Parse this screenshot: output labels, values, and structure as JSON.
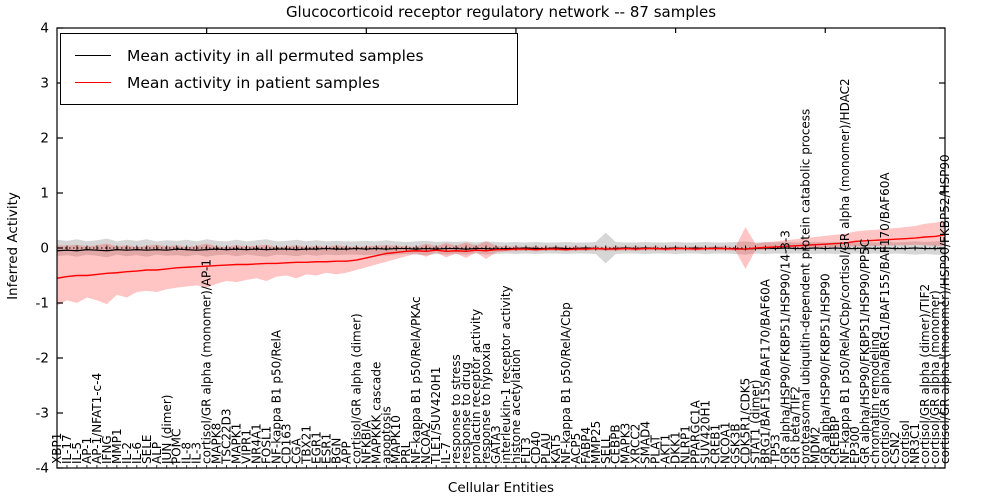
{
  "chart_data": {
    "type": "line",
    "title": "Glucocorticoid receptor regulatory network -- 87 samples",
    "xlabel": "Cellular Entities",
    "ylabel": "Inferred Activity",
    "ylim": [
      -4,
      4
    ],
    "yticks": [
      4,
      3,
      2,
      1,
      0,
      -1,
      -2,
      -3,
      -4
    ],
    "grid": false,
    "legend_position": "upper left",
    "legend": [
      {
        "label": "Mean activity in all permuted samples",
        "color": "#000000"
      },
      {
        "label": "Mean activity in patient samples",
        "color": "#ff0000"
      }
    ],
    "colors": {
      "permuted_line": "#000000",
      "patient_line": "#ff0000",
      "patient_band": "rgba(255,60,60,0.30)",
      "permuted_band": "rgba(120,120,120,0.30)",
      "zero_line": "#000000"
    },
    "categories": [
      "XBP1",
      "IL-17",
      "IL-5",
      "AP-1",
      "AP-1/NFAT1-c-4",
      "IFNG",
      "MMP1",
      "IL-2",
      "IL-6",
      "SELE",
      "ALP",
      "JUN (dimer)",
      "POMC",
      "IL-8",
      "IL-3",
      "cortisol/GR alpha (monomer)/AP-1",
      "MAPK8",
      "TSC22D3",
      "MAPK1",
      "VIPR1",
      "NR4A1",
      "FOSL1",
      "NF-kappa B1 p50/RelA",
      "CD163",
      "CGA",
      "TBX21",
      "EGR1",
      "ESR1",
      "BGN",
      "APP",
      "cortisol/GR alpha (dimer)",
      "NFKBIA",
      "MAPKKK cascade",
      "apoptosis",
      "MAPK10",
      "PRL",
      "NF-kappa B1 p50/RelA/PKAc",
      "NCOA2",
      "TLE1/SUV420H1",
      "IL-7",
      "response to stress",
      "response to drug",
      "prolactin receptor activity",
      "response to hypoxia",
      "GATA3",
      "interleukin-1 receptor activity",
      "histone acetylation",
      "FLT3",
      "CD40",
      "PLAU",
      "KAT5",
      "NF-kappa B1 p50/RelA/Cbp",
      "ACP5",
      "FABP4",
      "MMP25",
      "SELL",
      "CEBPB",
      "MAPK3",
      "XRCC2",
      "SMAD4",
      "PLAT",
      "AKT1",
      "DKK1",
      "NLRP1",
      "PPARGC1A",
      "SUV420H1",
      "CREB1",
      "NCOA1",
      "GSK3B",
      "CDK5R1/CDK5",
      "STAT1 (dimer)",
      "BRG1/BAF155/BAF170/BAF60A",
      "TP53",
      "GR alpha/HSP90/FKBP51/HSP90/14-3-3",
      "GR beta/TIF2",
      "proteasomal ubiquitin-dependent protein catabolic process",
      "MDM2",
      "GR alpha/HSP90/FKBP51/HSP90",
      "CREBBP",
      "NF-kappa B1 p50/RelA/Cbp/cortisol/GR alpha (monomer)/HDAC2",
      "EP300",
      "GR alpha/HSP90/FKBP51/HSP90/PP5C",
      "chromatin remodeling",
      "cortisol/GR alpha/BRG1/BAF155/BAF170/BAF60A",
      "CSN2",
      "cortisol",
      "NR3C1",
      "cortisol/GR alpha (dimer)/TIF2",
      "cortisol/GR alpha (monomer)",
      "cortisol/GR alpha (monomer)/HSP90/FKBP52/HSP90"
    ],
    "series": [
      {
        "name": "Mean activity in all permuted samples",
        "values": [
          -0.05,
          -0.04,
          -0.05,
          -0.03,
          -0.04,
          -0.05,
          -0.03,
          -0.04,
          -0.03,
          -0.04,
          -0.03,
          -0.04,
          -0.02,
          -0.03,
          -0.04,
          -0.03,
          -0.02,
          -0.03,
          -0.02,
          -0.03,
          -0.02,
          -0.03,
          -0.02,
          -0.02,
          -0.03,
          -0.02,
          -0.02,
          -0.01,
          -0.02,
          -0.02,
          -0.01,
          -0.02,
          -0.01,
          -0.02,
          -0.01,
          -0.01,
          -0.02,
          -0.01,
          -0.02,
          -0.01,
          -0.01,
          -0.02,
          -0.01,
          -0.01,
          -0.02,
          -0.01,
          -0.01,
          0.0,
          -0.01,
          -0.01,
          0.0,
          -0.01,
          -0.01,
          0.0,
          -0.01,
          -0.02,
          -0.01,
          0.0,
          -0.01,
          0.0,
          -0.01,
          -0.01,
          0.0,
          -0.01,
          0.0,
          -0.01,
          0.0,
          -0.01,
          -0.01,
          -0.02,
          -0.01,
          0.0,
          -0.01,
          0.0,
          -0.01,
          -0.01,
          0.0,
          -0.01,
          0.0,
          -0.01,
          -0.01,
          0.0,
          -0.01,
          0.0,
          -0.01,
          -0.01,
          0.0,
          -0.01,
          -0.01,
          -0.01
        ]
      },
      {
        "name": "Mean activity in patient samples",
        "values": [
          -0.55,
          -0.52,
          -0.5,
          -0.5,
          -0.48,
          -0.46,
          -0.45,
          -0.43,
          -0.42,
          -0.4,
          -0.4,
          -0.38,
          -0.36,
          -0.35,
          -0.34,
          -0.33,
          -0.32,
          -0.31,
          -0.3,
          -0.3,
          -0.29,
          -0.28,
          -0.28,
          -0.27,
          -0.26,
          -0.26,
          -0.25,
          -0.25,
          -0.24,
          -0.24,
          -0.22,
          -0.18,
          -0.14,
          -0.1,
          -0.08,
          -0.06,
          -0.05,
          -0.06,
          -0.04,
          -0.06,
          -0.05,
          -0.06,
          -0.04,
          -0.05,
          -0.03,
          -0.03,
          -0.02,
          -0.02,
          -0.03,
          -0.02,
          -0.02,
          -0.03,
          -0.02,
          -0.02,
          -0.01,
          -0.02,
          -0.02,
          -0.01,
          -0.02,
          -0.01,
          -0.01,
          -0.02,
          -0.01,
          -0.01,
          -0.02,
          -0.01,
          -0.01,
          -0.01,
          -0.02,
          -0.02,
          0.0,
          0.01,
          0.02,
          0.03,
          0.04,
          0.05,
          0.06,
          0.07,
          0.08,
          0.09,
          0.12,
          0.13,
          0.14,
          0.15,
          0.16,
          0.17,
          0.18,
          0.2,
          0.21,
          0.24
        ]
      }
    ],
    "patient_band_upper": [
      0.05,
      0.04,
      0.06,
      0.03,
      0.05,
      0.08,
      0.03,
      0.05,
      0.02,
      0.04,
      0.06,
      0.03,
      0.05,
      0.02,
      0.04,
      0.08,
      0.03,
      0.02,
      0.05,
      0.03,
      0.04,
      0.06,
      0.02,
      0.03,
      0.05,
      0.02,
      0.04,
      0.02,
      0.05,
      0.03,
      0.02,
      0.03,
      0.04,
      0.05,
      0.04,
      0.03,
      0.02,
      0.08,
      0.03,
      0.09,
      0.04,
      0.1,
      0.04,
      0.12,
      0.04,
      0.03,
      0.03,
      0.02,
      0.03,
      0.02,
      0.03,
      0.02,
      0.03,
      0.02,
      0.03,
      0.02,
      0.03,
      0.02,
      0.03,
      0.02,
      0.03,
      0.02,
      0.03,
      0.02,
      0.03,
      0.02,
      0.03,
      0.03,
      0.02,
      0.38,
      0.08,
      0.1,
      0.12,
      0.14,
      0.16,
      0.18,
      0.2,
      0.22,
      0.24,
      0.26,
      0.3,
      0.32,
      0.33,
      0.35,
      0.36,
      0.38,
      0.4,
      0.44,
      0.46,
      0.5
    ],
    "patient_band_lower": [
      -1.05,
      -0.95,
      -1.0,
      -0.9,
      -0.95,
      -1.02,
      -0.85,
      -0.9,
      -0.8,
      -0.78,
      -0.8,
      -0.75,
      -0.72,
      -0.7,
      -0.68,
      -0.72,
      -0.65,
      -0.6,
      -0.62,
      -0.58,
      -0.55,
      -0.6,
      -0.52,
      -0.5,
      -0.55,
      -0.48,
      -0.5,
      -0.45,
      -0.48,
      -0.45,
      -0.4,
      -0.35,
      -0.3,
      -0.25,
      -0.2,
      -0.15,
      -0.1,
      -0.16,
      -0.08,
      -0.17,
      -0.1,
      -0.18,
      -0.08,
      -0.2,
      -0.08,
      -0.06,
      -0.06,
      -0.05,
      -0.06,
      -0.05,
      -0.05,
      -0.06,
      -0.05,
      -0.05,
      -0.04,
      -0.05,
      -0.05,
      -0.04,
      -0.05,
      -0.04,
      -0.04,
      -0.05,
      -0.04,
      -0.04,
      -0.05,
      -0.04,
      -0.04,
      -0.04,
      -0.05,
      -0.38,
      -0.04,
      -0.03,
      -0.02,
      -0.01,
      0.0,
      0.0,
      0.01,
      0.01,
      0.02,
      0.02,
      0.03,
      0.03,
      0.04,
      0.04,
      0.05,
      0.05,
      0.06,
      0.05,
      0.04,
      0.04
    ],
    "permuted_band_halfwidth": [
      0.15,
      0.13,
      0.16,
      0.12,
      0.14,
      0.17,
      0.12,
      0.15,
      0.13,
      0.16,
      0.12,
      0.14,
      0.13,
      0.15,
      0.12,
      0.16,
      0.13,
      0.12,
      0.15,
      0.12,
      0.14,
      0.16,
      0.12,
      0.13,
      0.15,
      0.12,
      0.14,
      0.12,
      0.13,
      0.12,
      0.12,
      0.13,
      0.12,
      0.14,
      0.12,
      0.11,
      0.12,
      0.13,
      0.11,
      0.12,
      0.11,
      0.12,
      0.1,
      0.12,
      0.11,
      0.1,
      0.11,
      0.1,
      0.11,
      0.1,
      0.1,
      0.11,
      0.1,
      0.1,
      0.11,
      0.28,
      0.11,
      0.1,
      0.1,
      0.11,
      0.1,
      0.1,
      0.11,
      0.1,
      0.1,
      0.11,
      0.1,
      0.1,
      0.11,
      0.12,
      0.1,
      0.11,
      0.1,
      0.11,
      0.1,
      0.1,
      0.11,
      0.1,
      0.11,
      0.1,
      0.1,
      0.11,
      0.1,
      0.11,
      0.1,
      0.11,
      0.12,
      0.11,
      0.12,
      0.13
    ],
    "top_tick_indices": [
      15,
      31,
      46,
      62,
      77
    ]
  }
}
